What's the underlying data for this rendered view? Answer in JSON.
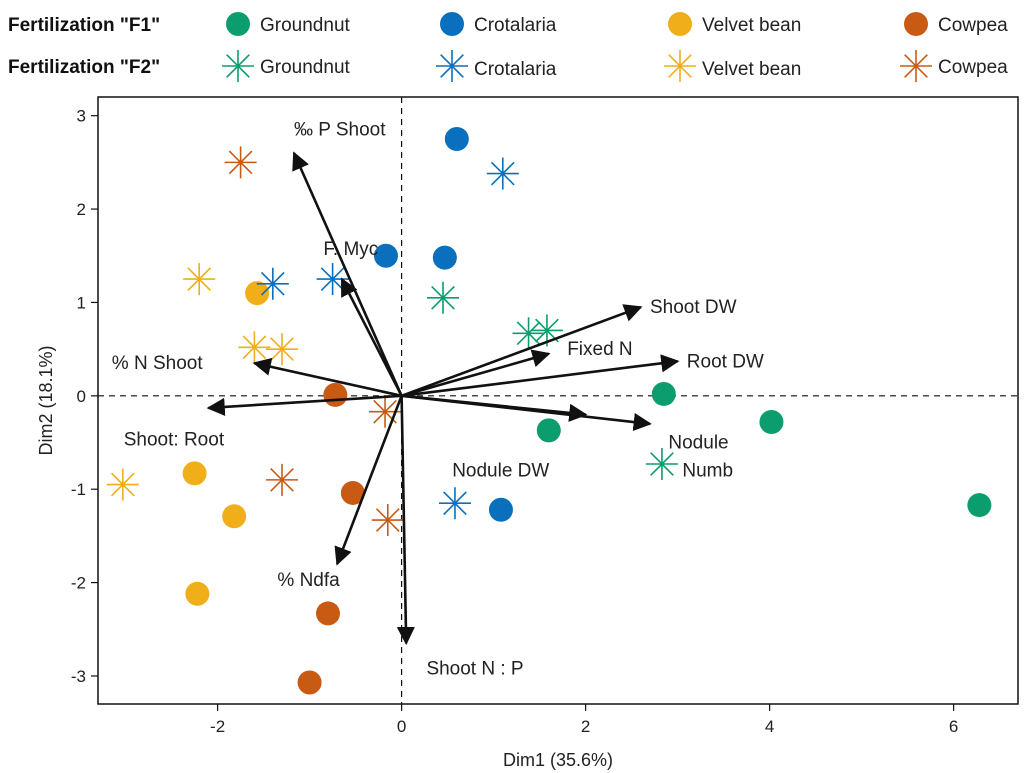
{
  "chart_data": {
    "type": "scatter",
    "subtype": "PCA biplot",
    "xlabel": "Dim1 (35.6%)",
    "ylabel": "Dim2 (18.1%)",
    "xlim": [
      -3.3,
      6.7
    ],
    "ylim": [
      -3.3,
      3.2
    ],
    "xticks": [
      -2,
      0,
      2,
      4,
      6
    ],
    "yticks": [
      -3,
      -2,
      -1,
      0,
      1,
      2,
      3
    ],
    "reference_lines": {
      "x": 0,
      "y": 0,
      "style": "dashed"
    },
    "legend": {
      "position": "top",
      "rows": [
        {
          "title": "Fertilization \"F1\"",
          "marker": "circle",
          "entries": [
            "Groundnut",
            "Crotalaria",
            "Velvet bean",
            "Cowpea"
          ]
        },
        {
          "title": "Fertilization \"F2\"",
          "marker": "asterisk",
          "entries": [
            "Groundnut",
            "Crotalaria",
            "Velvet bean",
            "Cowpea"
          ]
        }
      ]
    },
    "colors": {
      "Groundnut": "#0b9d6e",
      "Crotalaria": "#0a6fbc",
      "Velvet bean": "#f0ae18",
      "Cowpea": "#c95a14"
    },
    "points": [
      {
        "crop": "Groundnut",
        "fert": "F1",
        "x": 2.85,
        "y": 0.02
      },
      {
        "crop": "Groundnut",
        "fert": "F1",
        "x": 1.6,
        "y": -0.37
      },
      {
        "crop": "Groundnut",
        "fert": "F1",
        "x": 4.02,
        "y": -0.28
      },
      {
        "crop": "Groundnut",
        "fert": "F1",
        "x": 6.28,
        "y": -1.17
      },
      {
        "crop": "Crotalaria",
        "fert": "F1",
        "x": 0.6,
        "y": 2.75
      },
      {
        "crop": "Crotalaria",
        "fert": "F1",
        "x": -0.17,
        "y": 1.5
      },
      {
        "crop": "Crotalaria",
        "fert": "F1",
        "x": 0.47,
        "y": 1.48
      },
      {
        "crop": "Crotalaria",
        "fert": "F1",
        "x": 1.08,
        "y": -1.22
      },
      {
        "crop": "Velvet bean",
        "fert": "F1",
        "x": -1.57,
        "y": 1.1
      },
      {
        "crop": "Velvet bean",
        "fert": "F1",
        "x": -2.25,
        "y": -0.83
      },
      {
        "crop": "Velvet bean",
        "fert": "F1",
        "x": -1.82,
        "y": -1.29
      },
      {
        "crop": "Velvet bean",
        "fert": "F1",
        "x": -2.22,
        "y": -2.12
      },
      {
        "crop": "Cowpea",
        "fert": "F1",
        "x": -0.72,
        "y": 0.01
      },
      {
        "crop": "Cowpea",
        "fert": "F1",
        "x": -0.53,
        "y": -1.04
      },
      {
        "crop": "Cowpea",
        "fert": "F1",
        "x": -0.8,
        "y": -2.33
      },
      {
        "crop": "Cowpea",
        "fert": "F1",
        "x": -1.0,
        "y": -3.07
      },
      {
        "crop": "Groundnut",
        "fert": "F2",
        "x": 0.45,
        "y": 1.05
      },
      {
        "crop": "Groundnut",
        "fert": "F2",
        "x": 1.38,
        "y": 0.67
      },
      {
        "crop": "Groundnut",
        "fert": "F2",
        "x": 1.58,
        "y": 0.7
      },
      {
        "crop": "Groundnut",
        "fert": "F2",
        "x": 2.83,
        "y": -0.73
      },
      {
        "crop": "Crotalaria",
        "fert": "F2",
        "x": 1.1,
        "y": 2.38
      },
      {
        "crop": "Crotalaria",
        "fert": "F2",
        "x": -1.4,
        "y": 1.2
      },
      {
        "crop": "Crotalaria",
        "fert": "F2",
        "x": -0.75,
        "y": 1.25
      },
      {
        "crop": "Crotalaria",
        "fert": "F2",
        "x": 0.58,
        "y": -1.15
      },
      {
        "crop": "Velvet bean",
        "fert": "F2",
        "x": -2.2,
        "y": 1.25
      },
      {
        "crop": "Velvet bean",
        "fert": "F2",
        "x": -1.6,
        "y": 0.52
      },
      {
        "crop": "Velvet bean",
        "fert": "F2",
        "x": -1.3,
        "y": 0.5
      },
      {
        "crop": "Velvet bean",
        "fert": "F2",
        "x": -3.03,
        "y": -0.95
      },
      {
        "crop": "Cowpea",
        "fert": "F2",
        "x": -1.75,
        "y": 2.5
      },
      {
        "crop": "Cowpea",
        "fert": "F2",
        "x": -0.18,
        "y": -0.17
      },
      {
        "crop": "Cowpea",
        "fert": "F2",
        "x": -1.3,
        "y": -0.9
      },
      {
        "crop": "Cowpea",
        "fert": "F2",
        "x": -0.15,
        "y": -1.33
      }
    ],
    "vectors": [
      {
        "name": "‰ P Shoot",
        "x": -1.17,
        "y": 2.6
      },
      {
        "name": "F. Myc",
        "x": -0.65,
        "y": 1.25
      },
      {
        "name": "% N Shoot",
        "x": -1.6,
        "y": 0.35
      },
      {
        "name": "Shoot: Root",
        "x": -2.1,
        "y": -0.13
      },
      {
        "name": "% Ndfa",
        "x": -0.7,
        "y": -1.8
      },
      {
        "name": "Shoot N : P",
        "x": 0.05,
        "y": -2.65
      },
      {
        "name": "Shoot DW",
        "x": 2.6,
        "y": 0.95
      },
      {
        "name": "Fixed N",
        "x": 1.6,
        "y": 0.45
      },
      {
        "name": "Root DW",
        "x": 3.0,
        "y": 0.37
      },
      {
        "name": "Nodule DW",
        "x": 2.0,
        "y": -0.2
      },
      {
        "name": "Nodule Numb",
        "x": 2.7,
        "y": -0.3
      }
    ],
    "vector_label_offsets": [
      {
        "name": "‰ P Shoot",
        "dx": 0.0,
        "dy": 0.25
      },
      {
        "name": "F. Myc",
        "dx": -0.2,
        "dy": 0.32
      },
      {
        "name": "% N Shoot",
        "dx": -1.55,
        "dy": 0.0
      },
      {
        "name": "Shoot: Root",
        "dx": -0.92,
        "dy": -0.34
      },
      {
        "name": "% Ndfa",
        "dx": -0.65,
        "dy": -0.17
      },
      {
        "name": "Shoot N : P",
        "dx": 0.22,
        "dy": -0.27
      },
      {
        "name": "Shoot DW",
        "dx": 0.1,
        "dy": 0.0
      },
      {
        "name": "Fixed N",
        "dx": 0.2,
        "dy": 0.05
      },
      {
        "name": "Root DW",
        "dx": 0.1,
        "dy": 0.0
      },
      {
        "name": "Nodule DW",
        "dx": -1.45,
        "dy": -0.6
      },
      {
        "name": "Nodule Numb",
        "dx": 0.2,
        "dy": -0.2
      }
    ]
  }
}
